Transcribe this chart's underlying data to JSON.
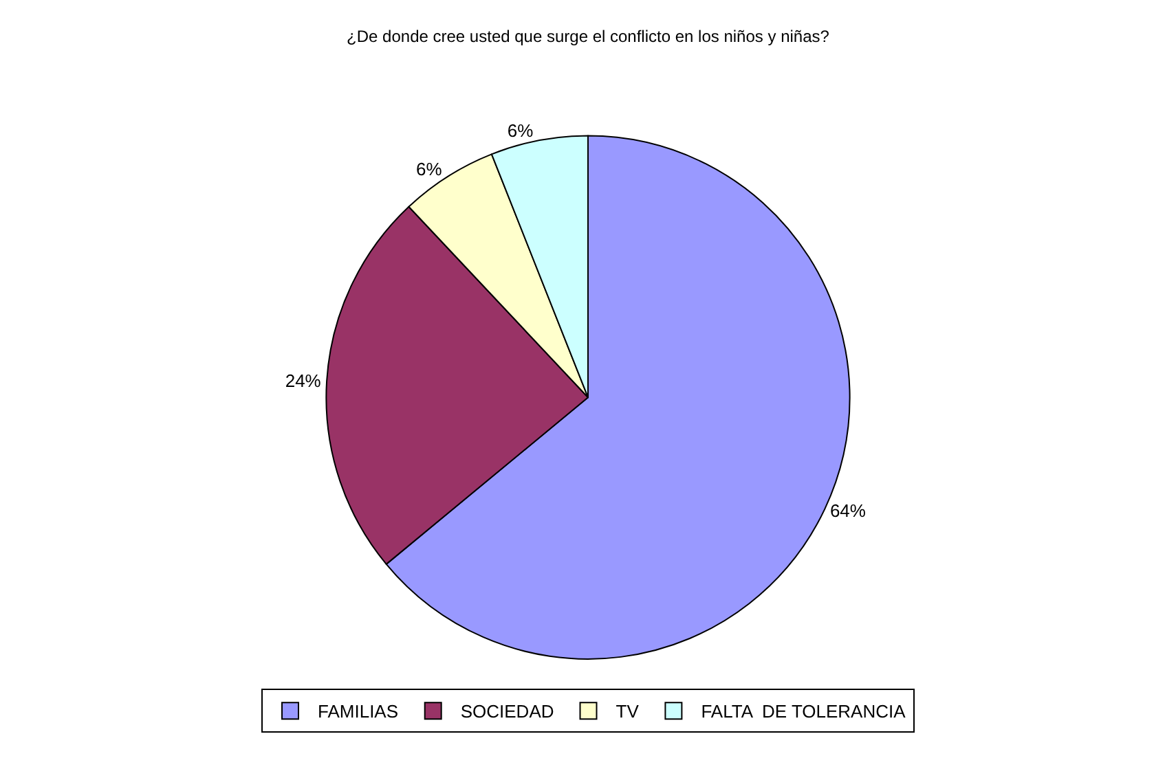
{
  "chart_data": {
    "type": "pie",
    "title": "¿De donde cree usted que surge el conflicto en los niños y niñas?",
    "categories": [
      "FAMILIAS",
      "SOCIEDAD",
      "TV",
      "FALTA  DE TOLERANCIA"
    ],
    "values": [
      64,
      24,
      6,
      6
    ],
    "value_labels": [
      "64%",
      "24%",
      "6%",
      "6%"
    ],
    "colors": [
      "#9999ff",
      "#993366",
      "#ffffcc",
      "#ccffff"
    ],
    "legend": "bottom"
  }
}
